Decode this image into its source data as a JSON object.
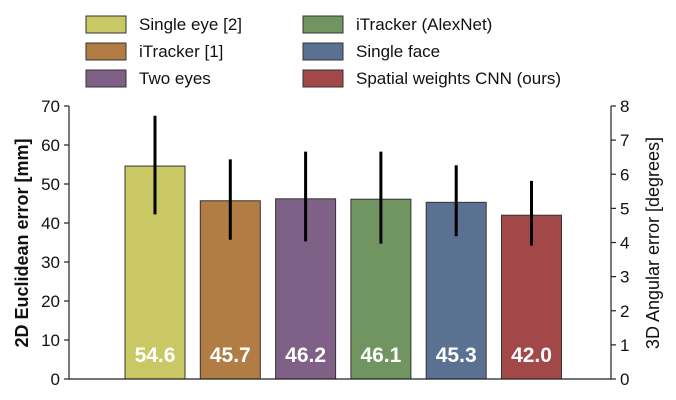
{
  "chart_data": {
    "type": "bar",
    "categories": [
      "Single eye [2]",
      "iTracker [1]",
      "Two eyes",
      "iTracker (AlexNet)",
      "Single face",
      "Spatial weights CNN (ours)"
    ],
    "values": [
      54.6,
      45.7,
      46.2,
      46.1,
      45.3,
      42.0
    ],
    "value_labels": [
      "54.6",
      "45.7",
      "46.2",
      "46.1",
      "45.3",
      "42.0"
    ],
    "error_bars": [
      {
        "low": 42.2,
        "high": 67.5
      },
      {
        "low": 35.7,
        "high": 56.3
      },
      {
        "low": 35.3,
        "high": 58.3
      },
      {
        "low": 34.7,
        "high": 58.3
      },
      {
        "low": 36.6,
        "high": 54.8
      },
      {
        "low": 34.2,
        "high": 50.8
      }
    ],
    "colors": [
      "#c9c865",
      "#b17d44",
      "#7f6188",
      "#719561",
      "#5b7191",
      "#a24848"
    ],
    "legend": {
      "placement": "top",
      "columns": [
        [
          "Single eye  [2]",
          "iTracker [1]",
          "Two eyes"
        ],
        [
          "iTracker (AlexNet)",
          "Single face",
          "Spatial weights CNN (ours)"
        ]
      ]
    },
    "ylabel": "2D Euclidean error [mm]",
    "ylim": [
      0,
      70
    ],
    "yticks": [
      "0",
      "10",
      "20",
      "30",
      "40",
      "50",
      "60",
      "70"
    ],
    "y2label": "3D Angular error [degrees]",
    "y2lim": [
      0,
      8
    ],
    "y2ticks": [
      "0",
      "1",
      "2",
      "3",
      "4",
      "5",
      "6",
      "7",
      "8"
    ],
    "grid": false
  }
}
